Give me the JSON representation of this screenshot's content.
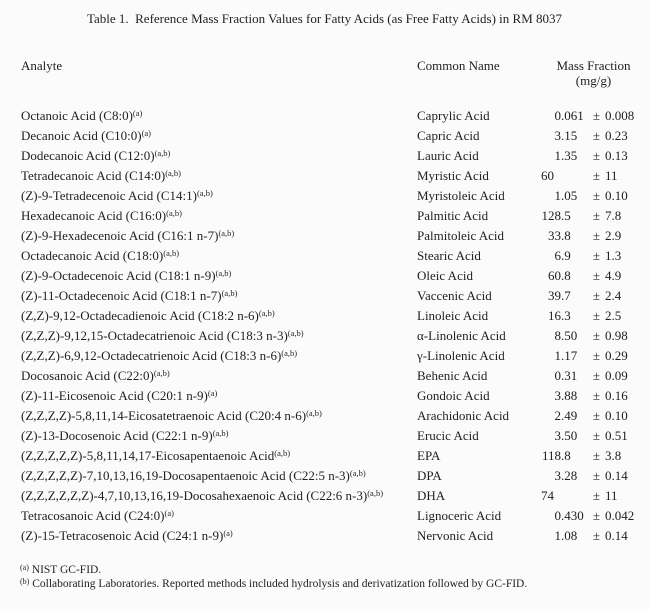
{
  "title": "Table 1.  Reference Mass Fraction Values for Fatty Acids (as Free Fatty Acids) in RM 8037",
  "headers": {
    "analyte": "Analyte",
    "common_name": "Common Name",
    "mass_fraction": "Mass Fraction",
    "mass_fraction_unit": "(mg/g)"
  },
  "plus_minus": "±",
  "table": {
    "rows": [
      {
        "analyte": "Octanoic Acid (C8:0)",
        "footnote_marker": "(a)",
        "common_name": "Caprylic Acid",
        "value": "0.061",
        "uncertainty": "0.008"
      },
      {
        "analyte": "Decanoic Acid (C10:0)",
        "footnote_marker": "(a)",
        "common_name": "Capric Acid",
        "value": "3.15",
        "uncertainty": "0.23"
      },
      {
        "analyte": "Dodecanoic Acid (C12:0)",
        "footnote_marker": "(a,b)",
        "common_name": "Lauric Acid",
        "value": "1.35",
        "uncertainty": "0.13"
      },
      {
        "analyte": "Tetradecanoic Acid (C14:0)",
        "footnote_marker": "(a,b)",
        "common_name": "Myristic Acid",
        "value": "60",
        "uncertainty": "11"
      },
      {
        "analyte": "(Z)-9-Tetradecenoic Acid (C14:1)",
        "footnote_marker": "(a,b)",
        "common_name": "Myristoleic Acid",
        "value": "1.05",
        "uncertainty": "0.10"
      },
      {
        "analyte": "Hexadecanoic Acid (C16:0)",
        "footnote_marker": "(a,b)",
        "common_name": "Palmitic Acid",
        "value": "128.5",
        "uncertainty": "7.8"
      },
      {
        "analyte": "(Z)-9-Hexadecenoic Acid (C16:1 n-7)",
        "footnote_marker": "(a,b)",
        "common_name": "Palmitoleic Acid",
        "value": "33.8",
        "uncertainty": "2.9"
      },
      {
        "analyte": "Octadecanoic Acid (C18:0)",
        "footnote_marker": "(a,b)",
        "common_name": "Stearic Acid",
        "value": "6.9",
        "uncertainty": "1.3"
      },
      {
        "analyte": "(Z)-9-Octadecenoic Acid (C18:1 n-9)",
        "footnote_marker": "(a,b)",
        "common_name": "Oleic Acid",
        "value": "60.8",
        "uncertainty": "4.9"
      },
      {
        "analyte": "(Z)-11-Octadecenoic Acid (C18:1 n-7)",
        "footnote_marker": "(a,b)",
        "common_name": "Vaccenic Acid",
        "value": "39.7",
        "uncertainty": "2.4"
      },
      {
        "analyte": "(Z,Z)-9,12-Octadecadienoic Acid (C18:2 n-6)",
        "footnote_marker": "(a,b)",
        "common_name": "Linoleic Acid",
        "value": "16.3",
        "uncertainty": "2.5"
      },
      {
        "analyte": "(Z,Z,Z)-9,12,15-Octadecatrienoic Acid (C18:3 n-3)",
        "footnote_marker": "(a,b)",
        "common_name": "α-Linolenic Acid",
        "value": "8.50",
        "uncertainty": "0.98"
      },
      {
        "analyte": "(Z,Z,Z)-6,9,12-Octadecatrienoic Acid (C18:3 n-6)",
        "footnote_marker": "(a,b)",
        "common_name": "γ-Linolenic Acid",
        "value": "1.17",
        "uncertainty": "0.29"
      },
      {
        "analyte": "Docosanoic Acid (C22:0)",
        "footnote_marker": "(a,b)",
        "common_name": "Behenic Acid",
        "value": "0.31",
        "uncertainty": "0.09"
      },
      {
        "analyte": "(Z)-11-Eicosenoic Acid (C20:1 n-9)",
        "footnote_marker": "(a)",
        "common_name": "Gondoic Acid",
        "value": "3.88",
        "uncertainty": "0.16"
      },
      {
        "analyte": "(Z,Z,Z,Z)-5,8,11,14-Eicosatetraenoic Acid (C20:4 n-6)",
        "footnote_marker": "(a,b)",
        "common_name": "Arachidonic Acid",
        "value": "2.49",
        "uncertainty": "0.10"
      },
      {
        "analyte": "(Z)-13-Docosenoic Acid (C22:1 n-9)",
        "footnote_marker": "(a,b)",
        "common_name": "Erucic Acid",
        "value": "3.50",
        "uncertainty": "0.51"
      },
      {
        "analyte": "(Z,Z,Z,Z,Z)-5,8,11,14,17-Eicosapentaenoic Acid",
        "footnote_marker": "(a,b)",
        "common_name": "EPA",
        "value": "118.8",
        "uncertainty": "3.8"
      },
      {
        "analyte": "(Z,Z,Z,Z,Z)-7,10,13,16,19-Docosapentaenoic Acid (C22:5 n-3)",
        "footnote_marker": "(a,b)",
        "common_name": "DPA",
        "value": "3.28",
        "uncertainty": "0.14"
      },
      {
        "analyte": "(Z,Z,Z,Z,Z,Z)-4,7,10,13,16,19-Docosahexaenoic Acid (C22:6 n-3)",
        "footnote_marker": "(a,b)",
        "common_name": "DHA",
        "value": "74",
        "uncertainty": "11"
      },
      {
        "analyte": "Tetracosanoic Acid (C24:0)",
        "footnote_marker": "(a)",
        "common_name": "Lignoceric Acid",
        "value": "0.430",
        "uncertainty": "0.042"
      },
      {
        "analyte": "(Z)-15-Tetracosenoic Acid (C24:1 n-9)",
        "footnote_marker": "(a)",
        "common_name": "Nervonic Acid",
        "value": "1.08",
        "uncertainty": "0.14"
      }
    ]
  },
  "footnotes": [
    {
      "marker": "(a)",
      "text": "NIST GC-FID."
    },
    {
      "marker": "(b)",
      "text": "Collaborating Laboratories. Reported methods included hydrolysis and derivatization followed by GC-FID."
    }
  ]
}
